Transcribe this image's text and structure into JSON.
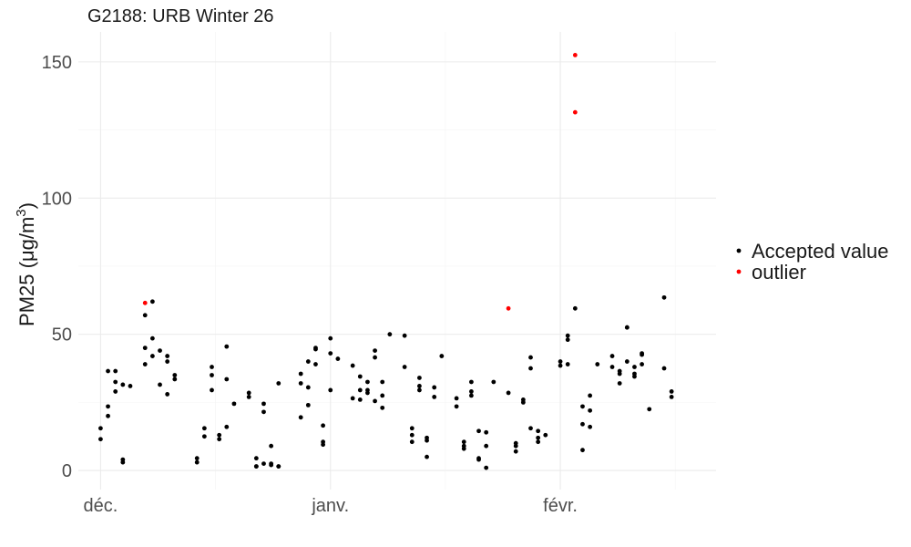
{
  "chart_data": {
    "type": "scatter",
    "title": "G2188: URB Winter 26",
    "xlabel": "",
    "ylabel": "PM25 (µg/m³)",
    "ylabel_parts": {
      "base": "PM25 (μg/m",
      "sup": "3",
      "end": ")"
    },
    "x_type": "date",
    "xlim": [
      "2025-11-28",
      "2026-02-22"
    ],
    "ylim": [
      -7,
      161
    ],
    "x_ticks": [
      {
        "date": "2025-12-01",
        "label": "déc."
      },
      {
        "date": "2026-01-01",
        "label": "janv."
      },
      {
        "date": "2026-02-01",
        "label": "févr."
      }
    ],
    "y_ticks": [
      0,
      50,
      100,
      150
    ],
    "grid": true,
    "legend_position": "right",
    "series": [
      {
        "name": "Accepted value",
        "color": "#000000",
        "points": [
          [
            "2025-12-01",
            11.5
          ],
          [
            "2025-12-01",
            15.5
          ],
          [
            "2025-12-02",
            20
          ],
          [
            "2025-12-02",
            23.5
          ],
          [
            "2025-12-02",
            36.5
          ],
          [
            "2025-12-03",
            36.5
          ],
          [
            "2025-12-03",
            32.5
          ],
          [
            "2025-12-03",
            29
          ],
          [
            "2025-12-04",
            4
          ],
          [
            "2025-12-04",
            3
          ],
          [
            "2025-12-04",
            31.5
          ],
          [
            "2025-12-05",
            31
          ],
          [
            "2025-12-07",
            57
          ],
          [
            "2025-12-07",
            39
          ],
          [
            "2025-12-07",
            45
          ],
          [
            "2025-12-08",
            42
          ],
          [
            "2025-12-08",
            48.5
          ],
          [
            "2025-12-08",
            62
          ],
          [
            "2025-12-09",
            44
          ],
          [
            "2025-12-09",
            31.5
          ],
          [
            "2025-12-10",
            28
          ],
          [
            "2025-12-10",
            40
          ],
          [
            "2025-12-10",
            42
          ],
          [
            "2025-12-11",
            35
          ],
          [
            "2025-12-11",
            33.5
          ],
          [
            "2025-12-14",
            3
          ],
          [
            "2025-12-14",
            4.5
          ],
          [
            "2025-12-15",
            12.5
          ],
          [
            "2025-12-15",
            15.5
          ],
          [
            "2025-12-16",
            38
          ],
          [
            "2025-12-16",
            35
          ],
          [
            "2025-12-16",
            29.5
          ],
          [
            "2025-12-17",
            11.5
          ],
          [
            "2025-12-17",
            13
          ],
          [
            "2025-12-18",
            45.5
          ],
          [
            "2025-12-18",
            33.5
          ],
          [
            "2025-12-18",
            16
          ],
          [
            "2025-12-19",
            24.5
          ],
          [
            "2025-12-21",
            28.5
          ],
          [
            "2025-12-21",
            27
          ],
          [
            "2025-12-22",
            4.5
          ],
          [
            "2025-12-22",
            1.5
          ],
          [
            "2025-12-22",
            1.5
          ],
          [
            "2025-12-23",
            24.5
          ],
          [
            "2025-12-23",
            21.5
          ],
          [
            "2025-12-23",
            2.5
          ],
          [
            "2025-12-24",
            2.5
          ],
          [
            "2025-12-24",
            9
          ],
          [
            "2025-12-24",
            2
          ],
          [
            "2025-12-25",
            1.5
          ],
          [
            "2025-12-25",
            1.5
          ],
          [
            "2025-12-25",
            32
          ],
          [
            "2025-12-28",
            19.5
          ],
          [
            "2025-12-28",
            32
          ],
          [
            "2025-12-28",
            35.5
          ],
          [
            "2025-12-29",
            30.5
          ],
          [
            "2025-12-29",
            24
          ],
          [
            "2025-12-29",
            40
          ],
          [
            "2025-12-30",
            44.5
          ],
          [
            "2025-12-30",
            45
          ],
          [
            "2025-12-30",
            39
          ],
          [
            "2025-12-31",
            16.5
          ],
          [
            "2025-12-31",
            9.5
          ],
          [
            "2025-12-31",
            10.5
          ],
          [
            "2026-01-01",
            48.5
          ],
          [
            "2026-01-01",
            43
          ],
          [
            "2026-01-01",
            29.5
          ],
          [
            "2026-01-02",
            41
          ],
          [
            "2026-01-04",
            38.5
          ],
          [
            "2026-01-04",
            26.5
          ],
          [
            "2026-01-05",
            29.5
          ],
          [
            "2026-01-05",
            34.5
          ],
          [
            "2026-01-05",
            26
          ],
          [
            "2026-01-06",
            32.5
          ],
          [
            "2026-01-06",
            29.5
          ],
          [
            "2026-01-06",
            28.5
          ],
          [
            "2026-01-07",
            44
          ],
          [
            "2026-01-07",
            41.5
          ],
          [
            "2026-01-07",
            25.5
          ],
          [
            "2026-01-08",
            23
          ],
          [
            "2026-01-08",
            27.5
          ],
          [
            "2026-01-08",
            32.5
          ],
          [
            "2026-01-09",
            50
          ],
          [
            "2026-01-11",
            49.5
          ],
          [
            "2026-01-11",
            38
          ],
          [
            "2026-01-12",
            15.5
          ],
          [
            "2026-01-12",
            13
          ],
          [
            "2026-01-12",
            10.5
          ],
          [
            "2026-01-13",
            34
          ],
          [
            "2026-01-13",
            31
          ],
          [
            "2026-01-13",
            29.5
          ],
          [
            "2026-01-14",
            12
          ],
          [
            "2026-01-14",
            11
          ],
          [
            "2026-01-14",
            5
          ],
          [
            "2026-01-15",
            30.5
          ],
          [
            "2026-01-15",
            27
          ],
          [
            "2026-01-16",
            42
          ],
          [
            "2026-01-18",
            23.5
          ],
          [
            "2026-01-18",
            26.5
          ],
          [
            "2026-01-19",
            10.5
          ],
          [
            "2026-01-19",
            9
          ],
          [
            "2026-01-19",
            8
          ],
          [
            "2026-01-20",
            32.5
          ],
          [
            "2026-01-20",
            29
          ],
          [
            "2026-01-20",
            27.5
          ],
          [
            "2026-01-21",
            4.5
          ],
          [
            "2026-01-21",
            4
          ],
          [
            "2026-01-21",
            14.5
          ],
          [
            "2026-01-22",
            14
          ],
          [
            "2026-01-22",
            9
          ],
          [
            "2026-01-22",
            1
          ],
          [
            "2026-01-23",
            32.5
          ],
          [
            "2026-01-25",
            28.5
          ],
          [
            "2026-01-26",
            10
          ],
          [
            "2026-01-26",
            7
          ],
          [
            "2026-01-26",
            9
          ],
          [
            "2026-01-27",
            26
          ],
          [
            "2026-01-27",
            25
          ],
          [
            "2026-01-28",
            37.5
          ],
          [
            "2026-01-28",
            41.5
          ],
          [
            "2026-01-28",
            15.5
          ],
          [
            "2026-01-29",
            14.5
          ],
          [
            "2026-01-29",
            12
          ],
          [
            "2026-01-29",
            10.5
          ],
          [
            "2026-01-30",
            13
          ],
          [
            "2026-02-01",
            40
          ],
          [
            "2026-02-01",
            38.5
          ],
          [
            "2026-02-02",
            49.5
          ],
          [
            "2026-02-02",
            48
          ],
          [
            "2026-02-02",
            39
          ],
          [
            "2026-02-03",
            59.5
          ],
          [
            "2026-02-04",
            23.5
          ],
          [
            "2026-02-04",
            17
          ],
          [
            "2026-02-04",
            7.5
          ],
          [
            "2026-02-05",
            27.5
          ],
          [
            "2026-02-05",
            22
          ],
          [
            "2026-02-05",
            16
          ],
          [
            "2026-02-06",
            39
          ],
          [
            "2026-02-08",
            42
          ],
          [
            "2026-02-08",
            38
          ],
          [
            "2026-02-09",
            36.5
          ],
          [
            "2026-02-09",
            35.5
          ],
          [
            "2026-02-09",
            32
          ],
          [
            "2026-02-10",
            52.5
          ],
          [
            "2026-02-10",
            52.5
          ],
          [
            "2026-02-10",
            40
          ],
          [
            "2026-02-11",
            38
          ],
          [
            "2026-02-11",
            35.5
          ],
          [
            "2026-02-11",
            34.5
          ],
          [
            "2026-02-12",
            43
          ],
          [
            "2026-02-12",
            42.5
          ],
          [
            "2026-02-12",
            39
          ],
          [
            "2026-02-13",
            22.5
          ],
          [
            "2026-02-15",
            37.5
          ],
          [
            "2026-02-15",
            63.5
          ],
          [
            "2026-02-16",
            29
          ],
          [
            "2026-02-16",
            27
          ]
        ]
      },
      {
        "name": "outlier",
        "color": "#ff0000",
        "points": [
          [
            "2025-12-07",
            61.5
          ],
          [
            "2026-01-25",
            59.5
          ],
          [
            "2026-02-03",
            152.5
          ],
          [
            "2026-02-03",
            131.5
          ]
        ]
      }
    ]
  }
}
